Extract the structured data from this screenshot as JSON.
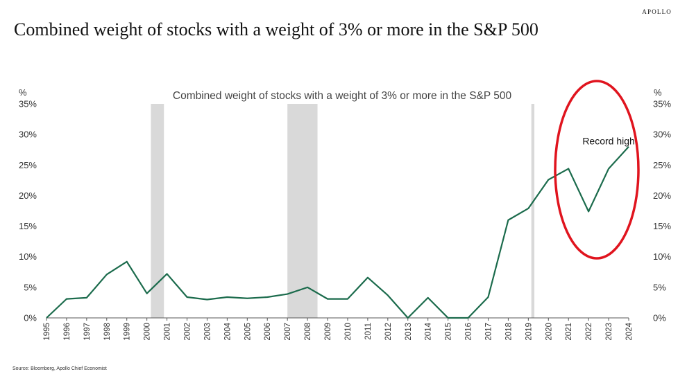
{
  "brand": "APOLLO",
  "title": "Combined weight of stocks with a weight of 3% or more in the S&P 500",
  "source": "Source: Bloomberg, Apollo Chief Economist",
  "chart_data": {
    "type": "line",
    "title": "Combined weight of stocks with a weight of 3% or more in the S&P 500",
    "ylabel_left": "%",
    "ylabel_right": "%",
    "ylim": [
      0,
      35
    ],
    "yticks": [
      "0%",
      "5%",
      "10%",
      "15%",
      "20%",
      "25%",
      "30%",
      "35%"
    ],
    "ytick_values": [
      0,
      5,
      10,
      15,
      20,
      25,
      30,
      35
    ],
    "x": [
      "1995",
      "1996",
      "1997",
      "1998",
      "1999",
      "2000",
      "2001",
      "2002",
      "2003",
      "2004",
      "2005",
      "2006",
      "2007",
      "2008",
      "2009",
      "2010",
      "2011",
      "2012",
      "2013",
      "2014",
      "2015",
      "2016",
      "2017",
      "2018",
      "2019",
      "2020",
      "2021",
      "2022",
      "2023",
      "2024"
    ],
    "series": [
      {
        "values": [
          0,
          3.1,
          3.3,
          7.1,
          9.2,
          4.0,
          7.2,
          3.4,
          3.0,
          3.4,
          3.2,
          3.4,
          3.9,
          5.0,
          3.1,
          3.1,
          6.6,
          3.7,
          0,
          3.3,
          0,
          0,
          3.4,
          16.0,
          17.9,
          22.6,
          24.4,
          17.4,
          24.4,
          28.0
        ],
        "color": "#1b6b4c"
      }
    ],
    "recession_shading": [
      {
        "start": 2000.2,
        "end": 2000.85
      },
      {
        "start": 2007.0,
        "end": 2008.5
      },
      {
        "start": 2019.15,
        "end": 2019.3
      }
    ],
    "shading_color": "#d9d9d9",
    "annotations": [
      {
        "text": "Record high",
        "x": 2023.0,
        "y": 29.5
      }
    ],
    "highlight_ellipse_color": "#e0141e",
    "grid": false,
    "legend": "none"
  }
}
